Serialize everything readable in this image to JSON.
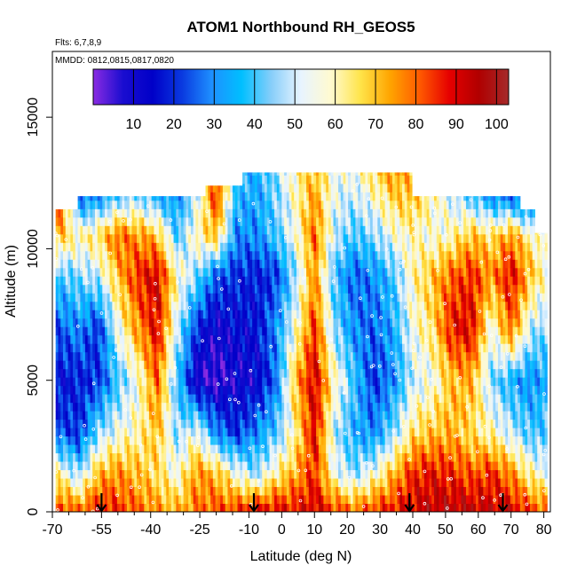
{
  "chart_data": {
    "type": "heatmap",
    "title": "ATOM1 Northbound RH_GEOS5",
    "flights_label": "Flts: 6,7,8,9",
    "dates_label": "MMDD: 0812,0815,0817,0820",
    "xlabel": "Latitude (deg N)",
    "ylabel": "Altitude (m)",
    "xlim": [
      -70,
      82
    ],
    "ylim": [
      0,
      17500
    ],
    "x_ticks": [
      -70,
      -55,
      -40,
      -25,
      -10,
      0,
      10,
      20,
      30,
      40,
      50,
      60,
      70,
      80
    ],
    "x_tick_labels": [
      "-70",
      "-55",
      "-40",
      "-25",
      "-10",
      "0",
      "10",
      "20",
      "30",
      "40",
      "50",
      "60",
      "70",
      "80"
    ],
    "x_minor_ticks": [
      -65,
      -60,
      -50,
      -45,
      -35,
      -30,
      -20,
      -15,
      -5,
      5,
      15,
      25,
      35,
      45,
      55,
      65,
      75
    ],
    "y_ticks": [
      0,
      5000,
      10000,
      15000
    ],
    "y_tick_labels": [
      "0",
      "5000",
      "10000",
      "15000"
    ],
    "colorbar": {
      "min": 0,
      "max": 103,
      "ticks": [
        10,
        20,
        30,
        40,
        50,
        60,
        70,
        80,
        90,
        100
      ],
      "tick_labels": [
        "10",
        "20",
        "30",
        "40",
        "50",
        "60",
        "70",
        "80",
        "90",
        "100"
      ],
      "colors": [
        "#8a2be2",
        "#1a0dd0",
        "#0000c8",
        "#0a3ae0",
        "#1e90ff",
        "#00bfff",
        "#87cefa",
        "#e8f4ff",
        "#fffad0",
        "#ffe44a",
        "#ffa500",
        "#ff5a00",
        "#e60000",
        "#b00000",
        "#a52a2a"
      ]
    },
    "arrows_latitude": [
      -55,
      -8.5,
      39,
      67.5
    ],
    "ceiling_profile": [
      {
        "x0": -69,
        "x1": -67,
        "top": 11500
      },
      {
        "x0": -67,
        "x1": -62,
        "top": 11500
      },
      {
        "x0": -62,
        "x1": -23,
        "top": 12000
      },
      {
        "x0": -23,
        "x1": -12,
        "top": 12400
      },
      {
        "x0": -12,
        "x1": 40,
        "top": 12900
      },
      {
        "x0": 40,
        "x1": 73,
        "top": 12000
      },
      {
        "x0": 73,
        "x1": 77,
        "top": 11500
      },
      {
        "x0": 77,
        "x1": 81,
        "top": 10600
      }
    ],
    "rh_profiles": [
      {
        "lat": -68,
        "levels": [
          {
            "z": 0,
            "rh": 85
          },
          {
            "z": 1500,
            "rh": 60
          },
          {
            "z": 3000,
            "rh": 25
          },
          {
            "z": 5000,
            "rh": 15
          },
          {
            "z": 7000,
            "rh": 25
          },
          {
            "z": 9000,
            "rh": 40
          },
          {
            "z": 10500,
            "rh": 70
          },
          {
            "z": 11500,
            "rh": 85
          }
        ]
      },
      {
        "lat": -62,
        "levels": [
          {
            "z": 0,
            "rh": 80
          },
          {
            "z": 1500,
            "rh": 45
          },
          {
            "z": 3000,
            "rh": 20
          },
          {
            "z": 5000,
            "rh": 18
          },
          {
            "z": 7000,
            "rh": 30
          },
          {
            "z": 9000,
            "rh": 45
          },
          {
            "z": 10500,
            "rh": 60
          },
          {
            "z": 12000,
            "rh": 25
          }
        ]
      },
      {
        "lat": -56,
        "levels": [
          {
            "z": 0,
            "rh": 88
          },
          {
            "z": 1500,
            "rh": 70
          },
          {
            "z": 3000,
            "rh": 45
          },
          {
            "z": 5000,
            "rh": 20
          },
          {
            "z": 7000,
            "rh": 20
          },
          {
            "z": 9000,
            "rh": 50
          },
          {
            "z": 10500,
            "rh": 65
          },
          {
            "z": 12000,
            "rh": 30
          }
        ]
      },
      {
        "lat": -50,
        "levels": [
          {
            "z": 0,
            "rh": 85
          },
          {
            "z": 1500,
            "rh": 75
          },
          {
            "z": 3000,
            "rh": 55
          },
          {
            "z": 5000,
            "rh": 40
          },
          {
            "z": 7000,
            "rh": 55
          },
          {
            "z": 9000,
            "rh": 70
          },
          {
            "z": 10500,
            "rh": 80
          },
          {
            "z": 12000,
            "rh": 40
          }
        ]
      },
      {
        "lat": -44,
        "levels": [
          {
            "z": 0,
            "rh": 80
          },
          {
            "z": 1500,
            "rh": 70
          },
          {
            "z": 3000,
            "rh": 60
          },
          {
            "z": 5000,
            "rh": 55
          },
          {
            "z": 7000,
            "rh": 75
          },
          {
            "z": 9000,
            "rh": 85
          },
          {
            "z": 10500,
            "rh": 75
          },
          {
            "z": 12000,
            "rh": 45
          }
        ]
      },
      {
        "lat": -38,
        "levels": [
          {
            "z": 0,
            "rh": 75
          },
          {
            "z": 1500,
            "rh": 65
          },
          {
            "z": 3000,
            "rh": 70
          },
          {
            "z": 5000,
            "rh": 80
          },
          {
            "z": 7000,
            "rh": 90
          },
          {
            "z": 9000,
            "rh": 92
          },
          {
            "z": 10500,
            "rh": 70
          },
          {
            "z": 12000,
            "rh": 35
          }
        ]
      },
      {
        "lat": -32,
        "levels": [
          {
            "z": 0,
            "rh": 72
          },
          {
            "z": 1500,
            "rh": 55
          },
          {
            "z": 3000,
            "rh": 45
          },
          {
            "z": 5000,
            "rh": 40
          },
          {
            "z": 7000,
            "rh": 50
          },
          {
            "z": 9000,
            "rh": 60
          },
          {
            "z": 10500,
            "rh": 40
          },
          {
            "z": 12000,
            "rh": 30
          }
        ]
      },
      {
        "lat": -26,
        "levels": [
          {
            "z": 0,
            "rh": 78
          },
          {
            "z": 1500,
            "rh": 75
          },
          {
            "z": 3000,
            "rh": 55
          },
          {
            "z": 5000,
            "rh": 8
          },
          {
            "z": 7000,
            "rh": 20
          },
          {
            "z": 9000,
            "rh": 45
          },
          {
            "z": 10500,
            "rh": 60
          },
          {
            "z": 12000,
            "rh": 50
          }
        ]
      },
      {
        "lat": -20,
        "levels": [
          {
            "z": 0,
            "rh": 82
          },
          {
            "z": 1500,
            "rh": 70
          },
          {
            "z": 3000,
            "rh": 30
          },
          {
            "z": 5000,
            "rh": 5
          },
          {
            "z": 7000,
            "rh": 10
          },
          {
            "z": 9000,
            "rh": 25
          },
          {
            "z": 10500,
            "rh": 70
          },
          {
            "z": 12000,
            "rh": 85
          }
        ]
      },
      {
        "lat": -14,
        "levels": [
          {
            "z": 0,
            "rh": 85
          },
          {
            "z": 1500,
            "rh": 55
          },
          {
            "z": 3000,
            "rh": 20
          },
          {
            "z": 5000,
            "rh": 10
          },
          {
            "z": 7000,
            "rh": 15
          },
          {
            "z": 9000,
            "rh": 20
          },
          {
            "z": 10500,
            "rh": 30
          },
          {
            "z": 12400,
            "rh": 40
          }
        ]
      },
      {
        "lat": -8,
        "levels": [
          {
            "z": 0,
            "rh": 90
          },
          {
            "z": 1500,
            "rh": 45
          },
          {
            "z": 3000,
            "rh": 30
          },
          {
            "z": 5000,
            "rh": 12
          },
          {
            "z": 7000,
            "rh": 15
          },
          {
            "z": 9000,
            "rh": 18
          },
          {
            "z": 10500,
            "rh": 30
          },
          {
            "z": 12900,
            "rh": 35
          }
        ]
      },
      {
        "lat": -2,
        "levels": [
          {
            "z": 0,
            "rh": 90
          },
          {
            "z": 1500,
            "rh": 60
          },
          {
            "z": 3000,
            "rh": 40
          },
          {
            "z": 5000,
            "rh": 25
          },
          {
            "z": 7000,
            "rh": 30
          },
          {
            "z": 9000,
            "rh": 20
          },
          {
            "z": 10500,
            "rh": 40
          },
          {
            "z": 12900,
            "rh": 45
          }
        ]
      },
      {
        "lat": 4,
        "levels": [
          {
            "z": 0,
            "rh": 88
          },
          {
            "z": 1500,
            "rh": 72
          },
          {
            "z": 3000,
            "rh": 60
          },
          {
            "z": 5000,
            "rh": 70
          },
          {
            "z": 7000,
            "rh": 55
          },
          {
            "z": 9000,
            "rh": 45
          },
          {
            "z": 10500,
            "rh": 55
          },
          {
            "z": 12900,
            "rh": 60
          }
        ]
      },
      {
        "lat": 10,
        "levels": [
          {
            "z": 0,
            "rh": 92
          },
          {
            "z": 1500,
            "rh": 85
          },
          {
            "z": 3000,
            "rh": 90
          },
          {
            "z": 5000,
            "rh": 92
          },
          {
            "z": 7000,
            "rh": 85
          },
          {
            "z": 9000,
            "rh": 75
          },
          {
            "z": 10500,
            "rh": 80
          },
          {
            "z": 12900,
            "rh": 70
          }
        ]
      },
      {
        "lat": 16,
        "levels": [
          {
            "z": 0,
            "rh": 85
          },
          {
            "z": 1500,
            "rh": 55
          },
          {
            "z": 3000,
            "rh": 50
          },
          {
            "z": 5000,
            "rh": 60
          },
          {
            "z": 7000,
            "rh": 45
          },
          {
            "z": 9000,
            "rh": 40
          },
          {
            "z": 10500,
            "rh": 50
          },
          {
            "z": 12900,
            "rh": 55
          }
        ]
      },
      {
        "lat": 22,
        "levels": [
          {
            "z": 0,
            "rh": 80
          },
          {
            "z": 1500,
            "rh": 45
          },
          {
            "z": 3000,
            "rh": 35
          },
          {
            "z": 5000,
            "rh": 40
          },
          {
            "z": 7000,
            "rh": 30
          },
          {
            "z": 9000,
            "rh": 25
          },
          {
            "z": 10500,
            "rh": 40
          },
          {
            "z": 12900,
            "rh": 55
          }
        ]
      },
      {
        "lat": 28,
        "levels": [
          {
            "z": 0,
            "rh": 85
          },
          {
            "z": 1500,
            "rh": 55
          },
          {
            "z": 3000,
            "rh": 30
          },
          {
            "z": 5000,
            "rh": 20
          },
          {
            "z": 7000,
            "rh": 25
          },
          {
            "z": 9000,
            "rh": 30
          },
          {
            "z": 10500,
            "rh": 45
          },
          {
            "z": 12900,
            "rh": 65
          }
        ]
      },
      {
        "lat": 34,
        "levels": [
          {
            "z": 0,
            "rh": 88
          },
          {
            "z": 1500,
            "rh": 70
          },
          {
            "z": 3000,
            "rh": 45
          },
          {
            "z": 5000,
            "rh": 30
          },
          {
            "z": 7000,
            "rh": 35
          },
          {
            "z": 9000,
            "rh": 40
          },
          {
            "z": 10500,
            "rh": 55
          },
          {
            "z": 12900,
            "rh": 75
          }
        ]
      },
      {
        "lat": 40,
        "levels": [
          {
            "z": 0,
            "rh": 92
          },
          {
            "z": 1500,
            "rh": 85
          },
          {
            "z": 3000,
            "rh": 65
          },
          {
            "z": 5000,
            "rh": 50
          },
          {
            "z": 7000,
            "rh": 55
          },
          {
            "z": 9000,
            "rh": 60
          },
          {
            "z": 10500,
            "rh": 60
          },
          {
            "z": 12000,
            "rh": 70
          }
        ]
      },
      {
        "lat": 46,
        "levels": [
          {
            "z": 0,
            "rh": 95
          },
          {
            "z": 1500,
            "rh": 88
          },
          {
            "z": 3000,
            "rh": 70
          },
          {
            "z": 5000,
            "rh": 55
          },
          {
            "z": 7000,
            "rh": 65
          },
          {
            "z": 9000,
            "rh": 70
          },
          {
            "z": 10500,
            "rh": 55
          },
          {
            "z": 12000,
            "rh": 60
          }
        ]
      },
      {
        "lat": 52,
        "levels": [
          {
            "z": 0,
            "rh": 96
          },
          {
            "z": 1500,
            "rh": 85
          },
          {
            "z": 3000,
            "rh": 72
          },
          {
            "z": 5000,
            "rh": 70
          },
          {
            "z": 7000,
            "rh": 88
          },
          {
            "z": 9000,
            "rh": 80
          },
          {
            "z": 10500,
            "rh": 60
          },
          {
            "z": 12000,
            "rh": 50
          }
        ]
      },
      {
        "lat": 58,
        "levels": [
          {
            "z": 0,
            "rh": 95
          },
          {
            "z": 1500,
            "rh": 80
          },
          {
            "z": 3000,
            "rh": 65
          },
          {
            "z": 5000,
            "rh": 72
          },
          {
            "z": 7000,
            "rh": 90
          },
          {
            "z": 9000,
            "rh": 85
          },
          {
            "z": 10500,
            "rh": 70
          },
          {
            "z": 12000,
            "rh": 40
          }
        ]
      },
      {
        "lat": 64,
        "levels": [
          {
            "z": 0,
            "rh": 93
          },
          {
            "z": 1500,
            "rh": 85
          },
          {
            "z": 3000,
            "rh": 60
          },
          {
            "z": 5000,
            "rh": 45
          },
          {
            "z": 7000,
            "rh": 55
          },
          {
            "z": 9000,
            "rh": 75
          },
          {
            "z": 10500,
            "rh": 65
          },
          {
            "z": 12000,
            "rh": 30
          }
        ]
      },
      {
        "lat": 70,
        "levels": [
          {
            "z": 0,
            "rh": 92
          },
          {
            "z": 1500,
            "rh": 75
          },
          {
            "z": 3000,
            "rh": 50
          },
          {
            "z": 5000,
            "rh": 35
          },
          {
            "z": 7000,
            "rh": 80
          },
          {
            "z": 9000,
            "rh": 90
          },
          {
            "z": 10500,
            "rh": 75
          },
          {
            "z": 12000,
            "rh": 25
          }
        ]
      },
      {
        "lat": 76,
        "levels": [
          {
            "z": 0,
            "rh": 85
          },
          {
            "z": 1500,
            "rh": 60
          },
          {
            "z": 3000,
            "rh": 40
          },
          {
            "z": 5000,
            "rh": 30
          },
          {
            "z": 7000,
            "rh": 50
          },
          {
            "z": 9000,
            "rh": 70
          },
          {
            "z": 10500,
            "rh": 60
          },
          {
            "z": 11500,
            "rh": 30
          }
        ]
      },
      {
        "lat": 80,
        "levels": [
          {
            "z": 0,
            "rh": 80
          },
          {
            "z": 1500,
            "rh": 55
          },
          {
            "z": 3000,
            "rh": 40
          },
          {
            "z": 5000,
            "rh": 35
          },
          {
            "z": 7000,
            "rh": 45
          },
          {
            "z": 9000,
            "rh": 60
          },
          {
            "z": 10600,
            "rh": 55
          }
        ]
      }
    ]
  }
}
